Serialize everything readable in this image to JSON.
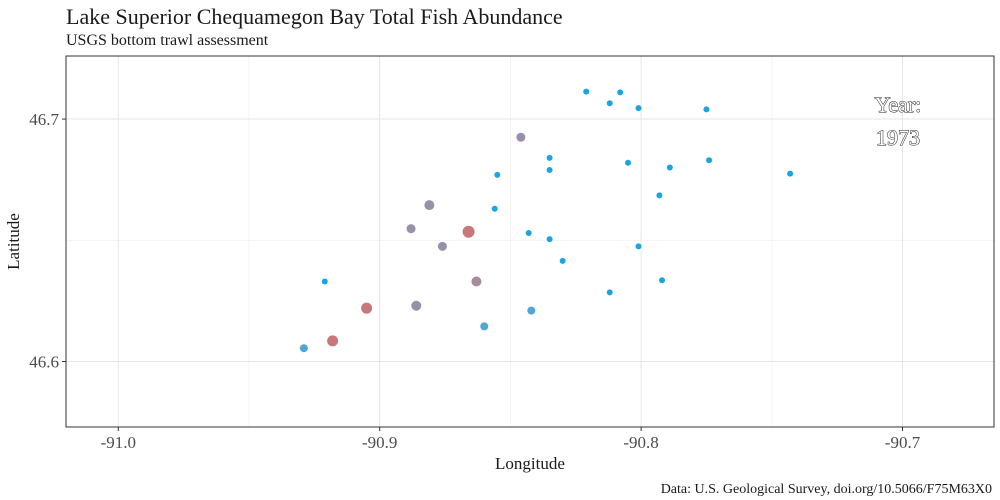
{
  "chart_data": {
    "type": "scatter",
    "title": "Lake Superior Chequamegon Bay Total Fish Abundance",
    "subtitle": "USGS bottom trawl assessment",
    "xlabel": "Longitude",
    "ylabel": "Latitude",
    "caption": "Data: U.S. Geological Survey, doi.org/10.5066/F75M63X0",
    "xlim": [
      -91.02,
      -90.665
    ],
    "ylim": [
      46.573,
      46.726
    ],
    "x_ticks": [
      -91.0,
      -90.9,
      -90.8,
      -90.7
    ],
    "x_tick_labels": [
      "-91.0",
      "-90.9",
      "-90.8",
      "-90.7"
    ],
    "y_ticks": [
      46.6,
      46.7
    ],
    "y_tick_labels": [
      "46.6",
      "46.7"
    ],
    "grid": true,
    "annotation": {
      "label": "Year:",
      "value": "1973",
      "position": "top-right"
    },
    "colors": {
      "high": "#c87878",
      "mid": "#9a8fa8",
      "low": "#4fa6d8",
      "none": "#1aa4e2"
    },
    "points": [
      {
        "x": -90.821,
        "y": 46.7113,
        "size": 3,
        "color": "#1aa4e2"
      },
      {
        "x": -90.808,
        "y": 46.711,
        "size": 3,
        "color": "#1aa4e2"
      },
      {
        "x": -90.812,
        "y": 46.7065,
        "size": 3,
        "color": "#1aa4e2"
      },
      {
        "x": -90.801,
        "y": 46.7045,
        "size": 3,
        "color": "#1aa4e2"
      },
      {
        "x": -90.775,
        "y": 46.704,
        "size": 3,
        "color": "#1aa4e2"
      },
      {
        "x": -90.846,
        "y": 46.6925,
        "size": 4.5,
        "color": "#9a8fa8"
      },
      {
        "x": -90.835,
        "y": 46.684,
        "size": 3,
        "color": "#1aa4e2"
      },
      {
        "x": -90.774,
        "y": 46.683,
        "size": 3,
        "color": "#1aa4e2"
      },
      {
        "x": -90.805,
        "y": 46.682,
        "size": 3,
        "color": "#1aa4e2"
      },
      {
        "x": -90.835,
        "y": 46.679,
        "size": 3,
        "color": "#1aa4e2"
      },
      {
        "x": -90.789,
        "y": 46.68,
        "size": 3,
        "color": "#1aa4e2"
      },
      {
        "x": -90.855,
        "y": 46.677,
        "size": 3,
        "color": "#1aa4e2"
      },
      {
        "x": -90.743,
        "y": 46.6775,
        "size": 3,
        "color": "#1aa4e2"
      },
      {
        "x": -90.793,
        "y": 46.6685,
        "size": 3,
        "color": "#1aa4e2"
      },
      {
        "x": -90.881,
        "y": 46.6645,
        "size": 5,
        "color": "#9a8fa8"
      },
      {
        "x": -90.856,
        "y": 46.663,
        "size": 3,
        "color": "#1aa4e2"
      },
      {
        "x": -90.866,
        "y": 46.6535,
        "size": 6,
        "color": "#c87878"
      },
      {
        "x": -90.888,
        "y": 46.6548,
        "size": 4.5,
        "color": "#9a8fa8"
      },
      {
        "x": -90.843,
        "y": 46.653,
        "size": 3,
        "color": "#1aa4e2"
      },
      {
        "x": -90.876,
        "y": 46.6475,
        "size": 4.5,
        "color": "#9a8fa8"
      },
      {
        "x": -90.835,
        "y": 46.6505,
        "size": 3,
        "color": "#1aa4e2"
      },
      {
        "x": -90.801,
        "y": 46.6475,
        "size": 3,
        "color": "#1aa4e2"
      },
      {
        "x": -90.83,
        "y": 46.6415,
        "size": 3,
        "color": "#1aa4e2"
      },
      {
        "x": -90.921,
        "y": 46.633,
        "size": 3,
        "color": "#1aa4e2"
      },
      {
        "x": -90.863,
        "y": 46.633,
        "size": 5,
        "color": "#a88c9c"
      },
      {
        "x": -90.792,
        "y": 46.6335,
        "size": 3,
        "color": "#1aa4e2"
      },
      {
        "x": -90.812,
        "y": 46.6285,
        "size": 3,
        "color": "#1aa4e2"
      },
      {
        "x": -90.905,
        "y": 46.622,
        "size": 5.5,
        "color": "#c87878"
      },
      {
        "x": -90.886,
        "y": 46.623,
        "size": 5,
        "color": "#9a8fa8"
      },
      {
        "x": -90.842,
        "y": 46.621,
        "size": 4,
        "color": "#4fa6d8"
      },
      {
        "x": -90.86,
        "y": 46.6145,
        "size": 4,
        "color": "#4fa6d8"
      },
      {
        "x": -90.918,
        "y": 46.6085,
        "size": 5.5,
        "color": "#c87878"
      },
      {
        "x": -90.929,
        "y": 46.6055,
        "size": 4,
        "color": "#4fa6d8"
      }
    ]
  }
}
